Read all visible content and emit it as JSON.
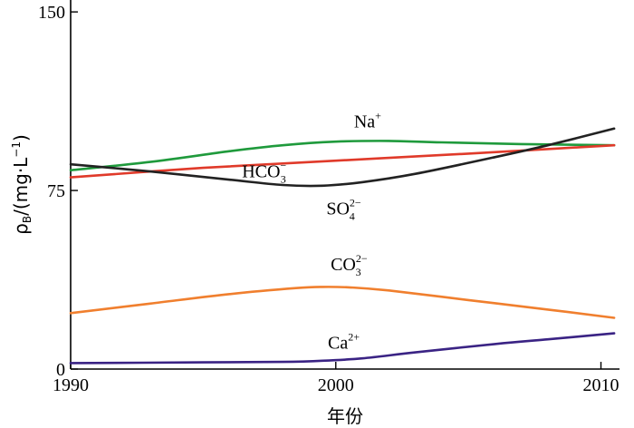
{
  "chart_data": {
    "type": "line",
    "xlabel": "年份",
    "ylabel_main": "ρ",
    "ylabel_sub": "B",
    "ylabel_rest": "/(mg·L",
    "ylabel_sup": "−1",
    "ylabel_close": ")",
    "xlim": [
      1990,
      2010.7
    ],
    "ylim": [
      0,
      155
    ],
    "x_ticks": [
      1990,
      2000,
      2010
    ],
    "x_tick_labels": [
      "1990",
      "2000",
      "2010"
    ],
    "y_ticks": [
      0,
      75,
      150
    ],
    "y_tick_labels": [
      "0",
      "75",
      "150"
    ],
    "grid": false,
    "legend": "none",
    "series": [
      {
        "id": "na",
        "label_main": "Na",
        "label_sup": "+",
        "label_sub": "",
        "color": "#1f9a3c",
        "label_at": [
          2001.2,
          101.5
        ],
        "points": [
          [
            1990,
            83.5
          ],
          [
            1993,
            87
          ],
          [
            1996,
            91.5
          ],
          [
            1998,
            94
          ],
          [
            2000,
            95.5
          ],
          [
            2002,
            95.8
          ],
          [
            2004,
            95.2
          ],
          [
            2007,
            94.5
          ],
          [
            2010.5,
            94
          ]
        ]
      },
      {
        "id": "hco3",
        "label_main": "HCO",
        "label_sup": "−",
        "label_sub": "3",
        "color": "#e03a2a",
        "label_at": [
          1997.3,
          80.5
        ],
        "points": [
          [
            1990,
            80.5
          ],
          [
            1995,
            84.5
          ],
          [
            2000,
            87.5
          ],
          [
            2005,
            90.5
          ],
          [
            2010.5,
            94
          ]
        ]
      },
      {
        "id": "so4",
        "label_main": "SO",
        "label_sup": "2−",
        "label_sub": "4",
        "color": "#222222",
        "label_at": [
          2000.3,
          65
        ],
        "points": [
          [
            1990,
            86
          ],
          [
            1993,
            83
          ],
          [
            1996,
            79.5
          ],
          [
            1998,
            77.3
          ],
          [
            1999.5,
            77
          ],
          [
            2001,
            78.5
          ],
          [
            2003,
            82
          ],
          [
            2006,
            89
          ],
          [
            2008,
            94
          ],
          [
            2010.5,
            101
          ]
        ]
      },
      {
        "id": "co3",
        "label_main": "CO",
        "label_sup": "2−",
        "label_sub": "3",
        "color": "#f07f2e",
        "label_at": [
          2000.5,
          41.5
        ],
        "points": [
          [
            1990,
            23.5
          ],
          [
            1993,
            27.5
          ],
          [
            1996,
            31.5
          ],
          [
            1998.5,
            34
          ],
          [
            1999.5,
            34.5
          ],
          [
            2000.5,
            34.3
          ],
          [
            2002,
            33
          ],
          [
            2005,
            29
          ],
          [
            2008,
            25
          ],
          [
            2010.5,
            21.5
          ]
        ]
      },
      {
        "id": "ca",
        "label_main": "Ca",
        "label_sup": "2+",
        "label_sub": "",
        "color": "#3a2384",
        "label_at": [
          2000.3,
          8.5
        ],
        "points": [
          [
            1990,
            2.5
          ],
          [
            1995,
            2.8
          ],
          [
            1998,
            3
          ],
          [
            1999.5,
            3.5
          ],
          [
            2001,
            4.5
          ],
          [
            2003,
            7
          ],
          [
            2006,
            10.5
          ],
          [
            2008,
            12.5
          ],
          [
            2010.5,
            15
          ]
        ]
      }
    ]
  }
}
